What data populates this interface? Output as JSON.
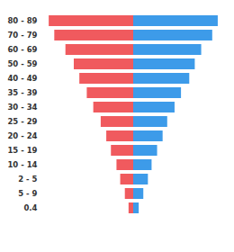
{
  "chart_data": {
    "type": "bar",
    "orientation": "horizontal",
    "tick_labels": "y",
    "grid": false,
    "categories": [
      "80 - 89",
      "70 - 79",
      "60 - 69",
      "50 - 59",
      "40 - 49",
      "35 - 39",
      "30 - 34",
      "25 - 29",
      "20 - 24",
      "15 - 19",
      "10 - 14",
      "2 - 5",
      "5 - 9",
      "0.4"
    ],
    "xlim": [
      0,
      95
    ],
    "series": [
      {
        "color": "#f05a5e",
        "values": [
          91,
          85,
          73,
          64,
          58,
          50,
          43,
          35,
          29,
          24,
          18,
          14,
          9,
          5
        ]
      },
      {
        "color": "#3d9be9",
        "values": [
          92,
          86,
          74,
          67,
          61,
          52,
          45,
          37,
          32,
          26,
          20,
          16,
          11,
          6
        ]
      }
    ]
  }
}
